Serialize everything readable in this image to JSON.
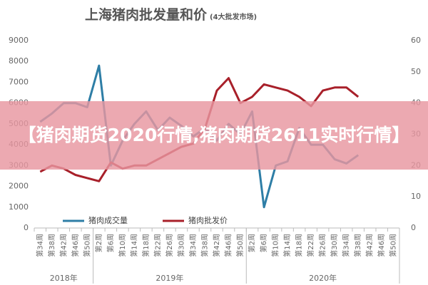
{
  "chart_data": {
    "type": "line",
    "title": "上海猪肉批发量和价",
    "subtitle": "(4大批发市场)",
    "categories": [
      "第34周",
      "第38周",
      "第42周",
      "第46周",
      "第50周",
      "第2周",
      "第6周",
      "第10周",
      "第14周",
      "第18周",
      "第22周",
      "第26周",
      "第30周",
      "第34周",
      "第38周",
      "第42周",
      "第46周",
      "第50周",
      "第2周",
      "第6周",
      "第10周",
      "第14周",
      "第18周",
      "第22周",
      "第26周",
      "第30周",
      "第34周",
      "第38周",
      "第42周",
      "第46周",
      "第50周"
    ],
    "x_groups": [
      {
        "label": "2018年",
        "start": 0,
        "end": 4
      },
      {
        "label": "2019年",
        "start": 5,
        "end": 17
      },
      {
        "label": "2020年",
        "start": 18,
        "end": 30
      }
    ],
    "series": [
      {
        "name": "猪肉成交量",
        "color": "#2e7ea6",
        "values": [
          5100,
          5500,
          6000,
          6000,
          5800,
          7800,
          3000,
          4200,
          5000,
          5600,
          4700,
          5300,
          4900,
          4400,
          4800,
          4200,
          5000,
          4500,
          5600,
          1000,
          3000,
          3200,
          4800,
          4000,
          4000,
          3300,
          3100,
          3500,
          null,
          null,
          null
        ]
      },
      {
        "name": "猪肉批发价",
        "color": "#a8202a",
        "axis": "y2",
        "values": [
          18,
          20,
          19,
          17,
          16,
          15,
          21,
          19,
          20,
          20,
          22,
          24,
          26,
          27,
          32,
          44,
          48,
          40,
          42,
          46,
          45,
          44,
          42,
          39,
          44,
          45,
          45,
          42,
          null,
          null,
          null
        ]
      }
    ],
    "ylim": [
      0,
      9000
    ],
    "yticks": [
      0,
      1000,
      2000,
      3000,
      4000,
      5000,
      6000,
      7000,
      8000,
      9000
    ],
    "y2lim": [
      0,
      60
    ],
    "y2ticks": [
      0,
      10,
      20,
      30,
      40,
      50,
      60
    ],
    "legend": "bottom",
    "grid": false
  },
  "banner": {
    "text": "【猪肉期货2020行情,猪肉期货2611实时行情】"
  }
}
